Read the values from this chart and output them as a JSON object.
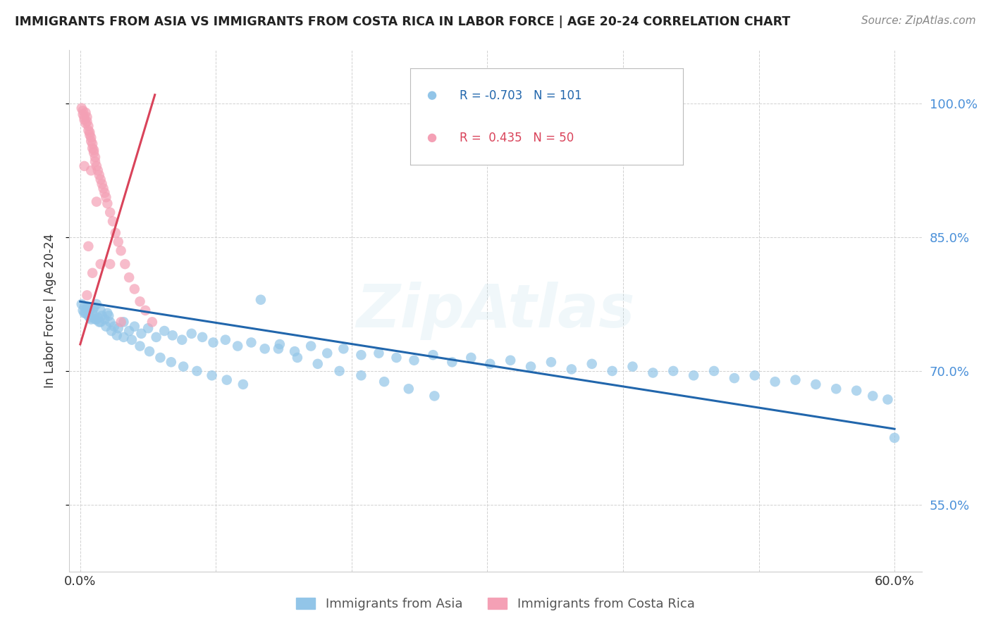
{
  "title": "IMMIGRANTS FROM ASIA VS IMMIGRANTS FROM COSTA RICA IN LABOR FORCE | AGE 20-24 CORRELATION CHART",
  "source": "Source: ZipAtlas.com",
  "ylabel": "In Labor Force | Age 20-24",
  "x_min": -0.008,
  "x_max": 0.62,
  "y_min": 0.475,
  "y_max": 1.06,
  "y_ticks": [
    0.55,
    0.7,
    0.85,
    1.0
  ],
  "y_tick_labels": [
    "55.0%",
    "70.0%",
    "85.0%",
    "100.0%"
  ],
  "x_ticks": [
    0.0,
    0.1,
    0.2,
    0.3,
    0.4,
    0.5,
    0.6
  ],
  "x_tick_labels": [
    "0.0%",
    "",
    "",
    "",
    "",
    "",
    "60.0%"
  ],
  "legend_asia": "Immigrants from Asia",
  "legend_cr": "Immigrants from Costa Rica",
  "R_asia": "-0.703",
  "N_asia": "101",
  "R_cr": "0.435",
  "N_cr": "50",
  "color_asia": "#92C5E8",
  "color_cr": "#F4A0B5",
  "line_color_asia": "#2166AC",
  "line_color_cr": "#D9435A",
  "background_color": "#FFFFFF",
  "watermark": "ZipAtlas",
  "asia_x": [
    0.001,
    0.002,
    0.003,
    0.004,
    0.005,
    0.006,
    0.007,
    0.008,
    0.009,
    0.01,
    0.011,
    0.012,
    0.013,
    0.014,
    0.015,
    0.016,
    0.018,
    0.02,
    0.022,
    0.025,
    0.028,
    0.032,
    0.036,
    0.04,
    0.045,
    0.05,
    0.056,
    0.062,
    0.068,
    0.075,
    0.082,
    0.09,
    0.098,
    0.107,
    0.116,
    0.126,
    0.136,
    0.147,
    0.158,
    0.17,
    0.182,
    0.194,
    0.207,
    0.22,
    0.233,
    0.246,
    0.26,
    0.274,
    0.288,
    0.302,
    0.317,
    0.332,
    0.347,
    0.362,
    0.377,
    0.392,
    0.407,
    0.422,
    0.437,
    0.452,
    0.467,
    0.482,
    0.497,
    0.512,
    0.527,
    0.542,
    0.557,
    0.572,
    0.584,
    0.595,
    0.003,
    0.005,
    0.007,
    0.009,
    0.012,
    0.015,
    0.019,
    0.023,
    0.027,
    0.032,
    0.038,
    0.044,
    0.051,
    0.059,
    0.067,
    0.076,
    0.086,
    0.097,
    0.108,
    0.12,
    0.133,
    0.146,
    0.16,
    0.175,
    0.191,
    0.207,
    0.224,
    0.242,
    0.261,
    0.6,
    0.021
  ],
  "asia_y": [
    0.775,
    0.768,
    0.772,
    0.765,
    0.77,
    0.762,
    0.768,
    0.758,
    0.764,
    0.771,
    0.758,
    0.775,
    0.76,
    0.755,
    0.768,
    0.762,
    0.758,
    0.765,
    0.755,
    0.75,
    0.748,
    0.755,
    0.745,
    0.75,
    0.742,
    0.748,
    0.738,
    0.745,
    0.74,
    0.735,
    0.742,
    0.738,
    0.732,
    0.735,
    0.728,
    0.732,
    0.725,
    0.73,
    0.722,
    0.728,
    0.72,
    0.725,
    0.718,
    0.72,
    0.715,
    0.712,
    0.718,
    0.71,
    0.715,
    0.708,
    0.712,
    0.705,
    0.71,
    0.702,
    0.708,
    0.7,
    0.705,
    0.698,
    0.7,
    0.695,
    0.7,
    0.692,
    0.695,
    0.688,
    0.69,
    0.685,
    0.68,
    0.678,
    0.672,
    0.668,
    0.765,
    0.77,
    0.76,
    0.768,
    0.758,
    0.755,
    0.75,
    0.745,
    0.74,
    0.738,
    0.735,
    0.728,
    0.722,
    0.715,
    0.71,
    0.705,
    0.7,
    0.695,
    0.69,
    0.685,
    0.78,
    0.725,
    0.715,
    0.708,
    0.7,
    0.695,
    0.688,
    0.68,
    0.672,
    0.625,
    0.762
  ],
  "cr_x": [
    0.001,
    0.002,
    0.002,
    0.003,
    0.003,
    0.004,
    0.004,
    0.005,
    0.005,
    0.006,
    0.006,
    0.007,
    0.007,
    0.008,
    0.008,
    0.009,
    0.009,
    0.01,
    0.01,
    0.011,
    0.011,
    0.012,
    0.013,
    0.014,
    0.015,
    0.016,
    0.017,
    0.018,
    0.019,
    0.02,
    0.022,
    0.024,
    0.026,
    0.028,
    0.03,
    0.033,
    0.036,
    0.04,
    0.044,
    0.048,
    0.053,
    0.03,
    0.012,
    0.008,
    0.006,
    0.003,
    0.015,
    0.022,
    0.005,
    0.009
  ],
  "cr_y": [
    0.995,
    0.992,
    0.988,
    0.985,
    0.982,
    0.99,
    0.978,
    0.985,
    0.98,
    0.975,
    0.97,
    0.968,
    0.965,
    0.962,
    0.958,
    0.955,
    0.95,
    0.948,
    0.945,
    0.94,
    0.935,
    0.93,
    0.925,
    0.92,
    0.915,
    0.91,
    0.905,
    0.9,
    0.895,
    0.888,
    0.878,
    0.868,
    0.855,
    0.845,
    0.835,
    0.82,
    0.805,
    0.792,
    0.778,
    0.768,
    0.755,
    0.755,
    0.89,
    0.925,
    0.84,
    0.93,
    0.82,
    0.82,
    0.785,
    0.81
  ],
  "asia_line_x": [
    0.0,
    0.6
  ],
  "asia_line_y": [
    0.778,
    0.635
  ],
  "cr_line_x": [
    0.0,
    0.055
  ],
  "cr_line_y": [
    0.73,
    1.01
  ]
}
